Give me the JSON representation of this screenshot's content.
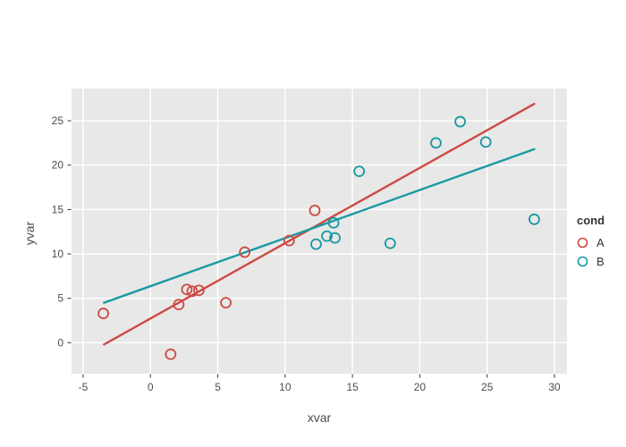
{
  "legend": {
    "title": "cond",
    "items": [
      {
        "label": "A",
        "color": "#cc4b42"
      },
      {
        "label": "B",
        "color": "#189aa1"
      }
    ]
  },
  "chart_data": {
    "type": "scatter",
    "title": "",
    "xlabel": "xvar",
    "ylabel": "yvar",
    "xlim": [
      -5.86,
      30.93
    ],
    "ylim": [
      -3.49,
      28.63
    ],
    "x_ticks": [
      -5,
      0,
      5,
      10,
      15,
      20,
      25,
      30
    ],
    "y_ticks": [
      0,
      5,
      10,
      15,
      20,
      25
    ],
    "grid": true,
    "legend_position": "right",
    "panel_bg": "#e8e8e8",
    "grid_color": "#ffffff",
    "tick_color": "#333333",
    "text_color": "#4d4d4d",
    "marker_style": "open-circle",
    "series": [
      {
        "name": "A",
        "color": "#cc4b42",
        "points": [
          [
            -3.5,
            3.3
          ],
          [
            1.5,
            -1.3
          ],
          [
            2.1,
            4.3
          ],
          [
            2.7,
            6.0
          ],
          [
            3.1,
            5.8
          ],
          [
            3.6,
            5.9
          ],
          [
            5.6,
            4.5
          ],
          [
            7.0,
            10.2
          ],
          [
            10.3,
            11.5
          ],
          [
            12.2,
            14.9
          ]
        ]
      },
      {
        "name": "B",
        "color": "#189aa1",
        "points": [
          [
            12.3,
            11.1
          ],
          [
            13.1,
            12.0
          ],
          [
            13.6,
            13.5
          ],
          [
            13.7,
            11.8
          ],
          [
            15.5,
            19.3
          ],
          [
            17.8,
            11.2
          ],
          [
            21.2,
            22.5
          ],
          [
            23.0,
            24.9
          ],
          [
            24.9,
            22.6
          ],
          [
            28.5,
            13.9
          ]
        ]
      }
    ],
    "trend_lines": [
      {
        "name": "A",
        "color": "#cc4b42",
        "x0": -3.45,
        "y0": -0.2,
        "x1": 28.5,
        "y1": 26.9
      },
      {
        "name": "B",
        "color": "#189aa1",
        "x0": -3.45,
        "y0": 4.5,
        "x1": 28.5,
        "y1": 21.8
      }
    ]
  }
}
